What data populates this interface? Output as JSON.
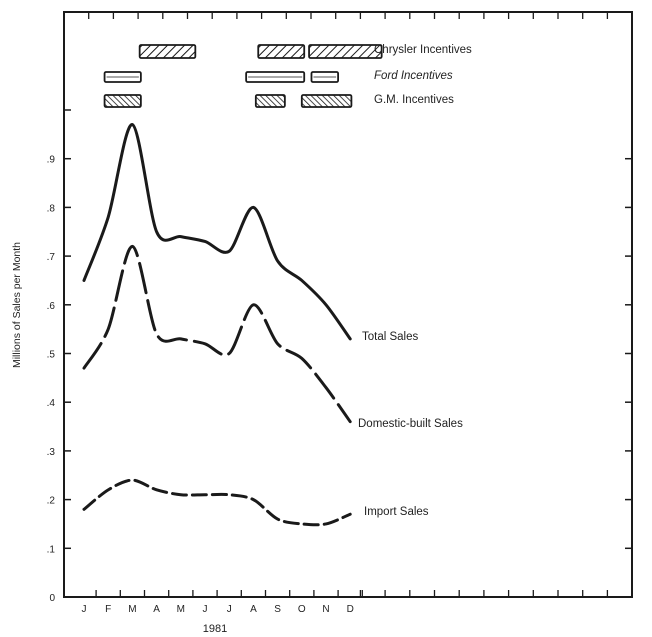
{
  "chart_data": {
    "type": "line",
    "categories": [
      "J",
      "F",
      "M",
      "A",
      "M",
      "J",
      "J",
      "A",
      "S",
      "O",
      "N",
      "D"
    ],
    "year_label": "1981",
    "xlabel": "",
    "ylabel": "Millions of Sales per Month",
    "ylim": [
      0,
      1.0
    ],
    "y_ticks": [
      0.1,
      0.2,
      0.3,
      0.4,
      0.5,
      0.6,
      0.7,
      0.8,
      0.9
    ],
    "y_tick_labels": [
      ".1",
      ".2",
      ".3",
      ".4",
      ".5",
      ".6",
      ".7",
      ".8",
      ".9"
    ],
    "origin_label": "0",
    "grid": false,
    "series": [
      {
        "name": "Total Sales",
        "style": "solid",
        "values": [
          0.65,
          0.78,
          0.97,
          0.75,
          0.74,
          0.73,
          0.71,
          0.8,
          0.69,
          0.65,
          0.6,
          0.53
        ]
      },
      {
        "name": "Domestic-built Sales",
        "style": "long-dash",
        "values": [
          0.47,
          0.55,
          0.72,
          0.54,
          0.53,
          0.52,
          0.5,
          0.6,
          0.52,
          0.49,
          0.43,
          0.36
        ]
      },
      {
        "name": "Import Sales",
        "style": "medium-dash",
        "values": [
          0.18,
          0.22,
          0.24,
          0.22,
          0.21,
          0.21,
          0.21,
          0.2,
          0.16,
          0.15,
          0.15,
          0.17
        ]
      }
    ],
    "incentives": [
      {
        "name": "Chrysler Incentives",
        "pattern": "hatch",
        "periods": [
          [
            2.3,
            4.6
          ],
          [
            7.2,
            9.1
          ],
          [
            9.3,
            12.3
          ]
        ]
      },
      {
        "name": "Ford Incentives",
        "pattern": "open",
        "periods": [
          [
            0.85,
            2.35
          ],
          [
            6.7,
            9.1
          ],
          [
            9.4,
            10.5
          ]
        ]
      },
      {
        "name": "G.M. Incentives",
        "pattern": "dense-hatch",
        "periods": [
          [
            0.85,
            2.35
          ],
          [
            7.1,
            8.3
          ],
          [
            9.0,
            11.05
          ]
        ]
      }
    ],
    "colors": {
      "ink": "#1a1a1a",
      "background": "#ffffff"
    }
  }
}
